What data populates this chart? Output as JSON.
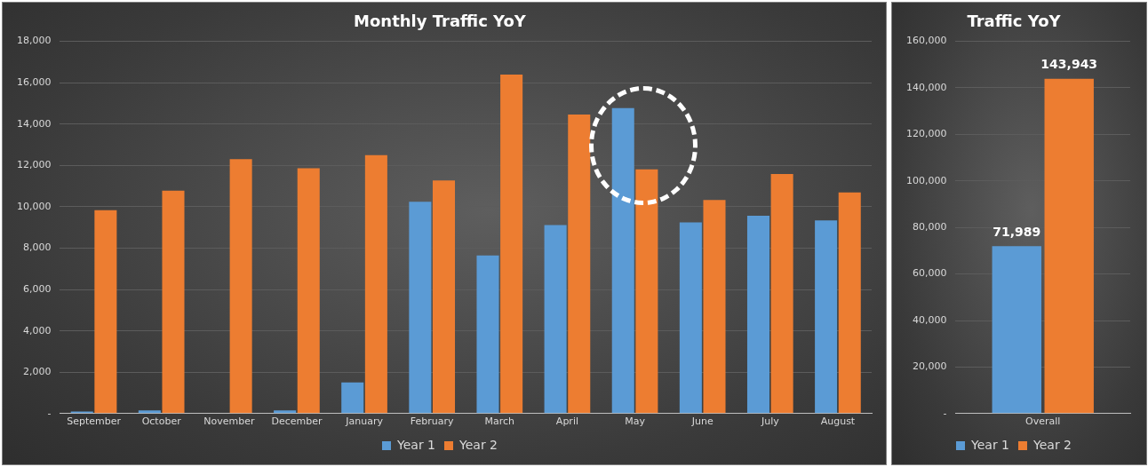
{
  "chart_data": [
    {
      "type": "bar",
      "title": "Monthly Traffic YoY",
      "categories": [
        "September",
        "October",
        "November",
        "December",
        "January",
        "February",
        "March",
        "April",
        "May",
        "June",
        "July",
        "August"
      ],
      "series": [
        {
          "name": "Year 1",
          "color": "#5b9bd5",
          "values": [
            100,
            150,
            null,
            150,
            1500,
            10240,
            7640,
            9120,
            14770,
            9250,
            9570,
            9340
          ]
        },
        {
          "name": "Year 2",
          "color": "#ed7d31",
          "values": [
            9840,
            10780,
            12300,
            11860,
            12500,
            11270,
            16390,
            14460,
            11810,
            10330,
            11590,
            10690
          ]
        }
      ],
      "ylim": [
        0,
        18000
      ],
      "yticks": [
        {
          "value": 0,
          "label": "-"
        },
        {
          "value": 2000,
          "label": "2,000"
        },
        {
          "value": 4000,
          "label": "4,000"
        },
        {
          "value": 6000,
          "label": "6,000"
        },
        {
          "value": 8000,
          "label": "8,000"
        },
        {
          "value": 10000,
          "label": "10,000"
        },
        {
          "value": 12000,
          "label": "12,000"
        },
        {
          "value": 14000,
          "label": "14,000"
        },
        {
          "value": 16000,
          "label": "16,000"
        },
        {
          "value": 18000,
          "label": "18,000"
        }
      ],
      "grid": "y",
      "legend": "bottom"
    },
    {
      "type": "bar",
      "title": "Traffic YoY",
      "categories": [
        "Overall"
      ],
      "series": [
        {
          "name": "Year 1",
          "color": "#5b9bd5",
          "values": [
            71989
          ],
          "value_labels": [
            "71,989"
          ]
        },
        {
          "name": "Year 2",
          "color": "#ed7d31",
          "values": [
            143943
          ],
          "value_labels": [
            "143,943"
          ]
        }
      ],
      "ylim": [
        0,
        160000
      ],
      "yticks": [
        {
          "value": 0,
          "label": "-"
        },
        {
          "value": 20000,
          "label": "20,000"
        },
        {
          "value": 40000,
          "label": "40,000"
        },
        {
          "value": 60000,
          "label": "60,000"
        },
        {
          "value": 80000,
          "label": "80,000"
        },
        {
          "value": 100000,
          "label": "100,000"
        },
        {
          "value": 120000,
          "label": "120,000"
        },
        {
          "value": 140000,
          "label": "140,000"
        },
        {
          "value": 160000,
          "label": "160,000"
        }
      ],
      "grid": "y",
      "legend": "bottom"
    }
  ]
}
